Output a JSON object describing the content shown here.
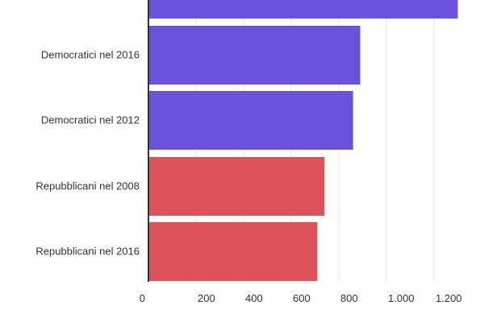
{
  "chart_data": {
    "type": "bar",
    "orientation": "horizontal",
    "categories": [
      "",
      "Democratici nel 2016",
      "Democratici nel 2012",
      "Repubblicani nel 2008",
      "Repubblicani nel 2016"
    ],
    "values": [
      1300,
      890,
      860,
      740,
      710
    ],
    "bar_colors": [
      "#6b52db",
      "#6b52db",
      "#6b52db",
      "#dc5258",
      "#dc5258"
    ],
    "x_ticks": [
      0,
      200,
      400,
      600,
      800,
      1000,
      1200
    ],
    "x_tick_labels": [
      "0",
      "200",
      "400",
      "600",
      "800",
      "1.000",
      "1.200"
    ],
    "xlim": [
      0,
      1360
    ],
    "grid": true,
    "legend": "none"
  }
}
